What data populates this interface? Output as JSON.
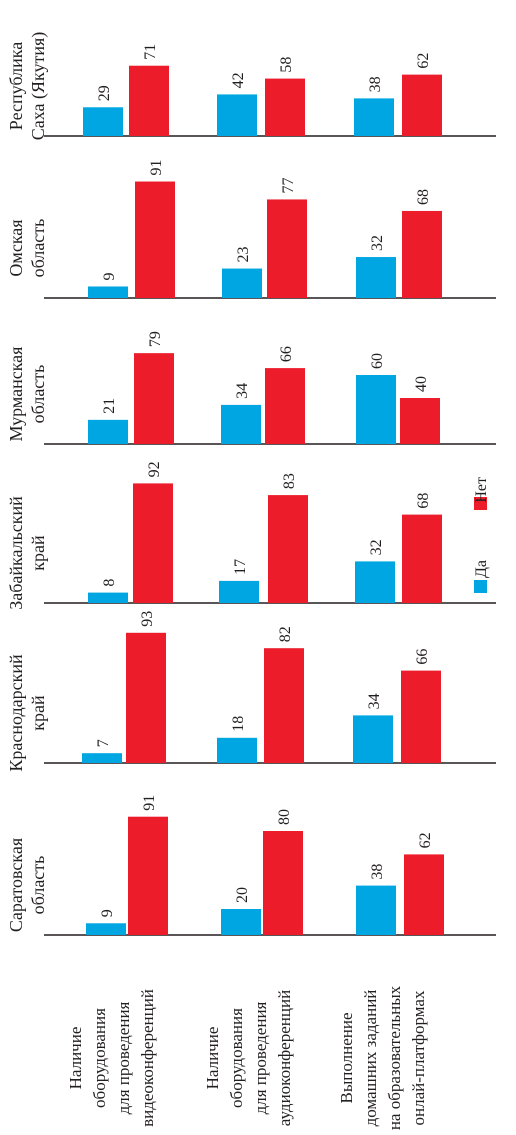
{
  "chart_data": {
    "type": "bar",
    "orientation": "rotated-90-ccw",
    "categories": [
      [
        "Наличие",
        "оборудования",
        "для проведения",
        "видеоконференций"
      ],
      [
        "Наличие",
        "оборудования",
        "для проведения",
        "аудиоконференций"
      ],
      [
        "Выполнение",
        "домашних заданий",
        "на образовательных",
        "онлай-платформах"
      ]
    ],
    "legend": {
      "placement": "right",
      "items": [
        {
          "label": "Да",
          "color": "#00a6e2"
        },
        {
          "label": "Нет",
          "color": "#ec1c2b"
        }
      ]
    },
    "ylim": [
      0,
      100
    ],
    "grid": false,
    "panels": [
      {
        "title": [
          "Саратовская",
          "область"
        ],
        "series": [
          {
            "name": "Да",
            "values": [
              9,
              20,
              38
            ]
          },
          {
            "name": "Нет",
            "values": [
              91,
              80,
              62
            ]
          }
        ]
      },
      {
        "title": [
          "Краснодарский",
          "край"
        ],
        "series": [
          {
            "name": "Да",
            "values": [
              7,
              18,
              34
            ]
          },
          {
            "name": "Нет",
            "values": [
              93,
              82,
              66
            ]
          }
        ]
      },
      {
        "title": [
          "Забайкальский",
          "край"
        ],
        "series": [
          {
            "name": "Да",
            "values": [
              8,
              17,
              32
            ]
          },
          {
            "name": "Нет",
            "values": [
              92,
              83,
              68
            ]
          }
        ]
      },
      {
        "title": [
          "Мурманская",
          "область"
        ],
        "series": [
          {
            "name": "Да",
            "values": [
              21,
              34,
              60
            ]
          },
          {
            "name": "Нет",
            "values": [
              79,
              66,
              40
            ]
          }
        ]
      },
      {
        "title": [
          "Омская",
          "область"
        ],
        "series": [
          {
            "name": "Да",
            "values": [
              9,
              23,
              32
            ]
          },
          {
            "name": "Нет",
            "values": [
              91,
              77,
              68
            ]
          }
        ]
      },
      {
        "title": [
          "Республика",
          "Саха (Якутия)"
        ],
        "series": [
          {
            "name": "Да",
            "values": [
              29,
              42,
              38
            ]
          },
          {
            "name": "Нет",
            "values": [
              71,
              58,
              62
            ]
          }
        ]
      }
    ]
  }
}
